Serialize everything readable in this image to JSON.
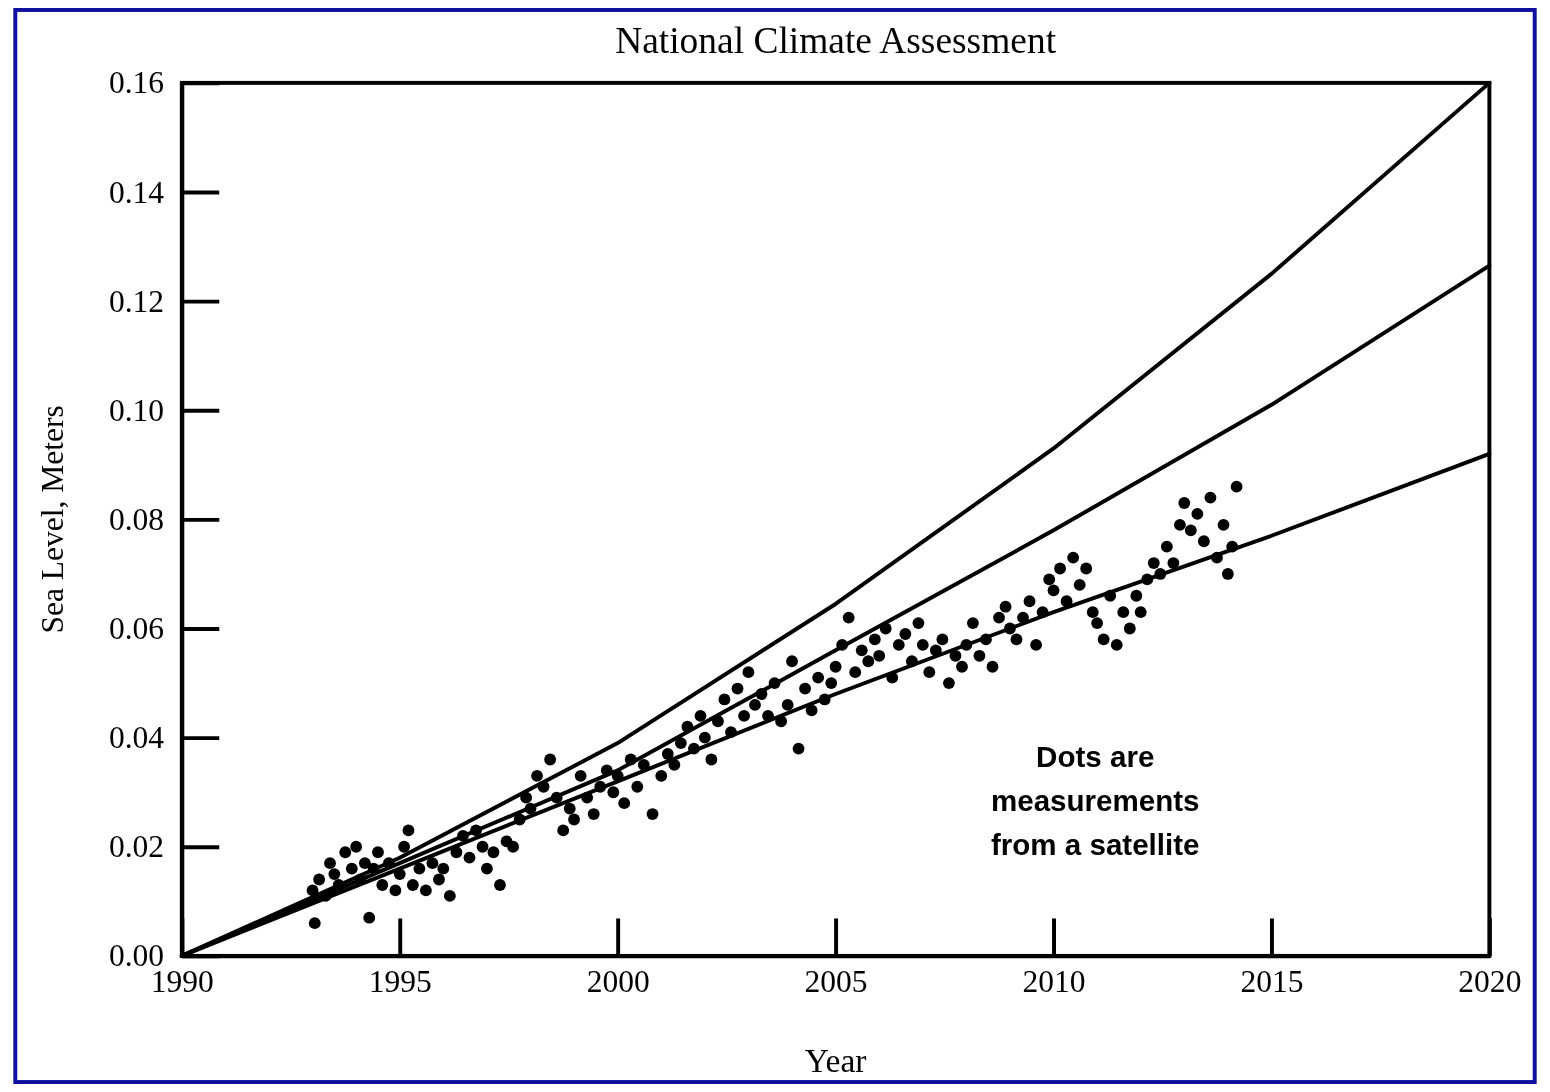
{
  "chart_data": {
    "type": "line",
    "title": "National Climate Assessment",
    "xlabel": "Year",
    "ylabel": "Sea Level, Meters",
    "xlim": [
      1990,
      2020
    ],
    "xticks": [
      1990,
      1995,
      2000,
      2005,
      2010,
      2015,
      2020
    ],
    "ylim": [
      0,
      0.16
    ],
    "yticks": [
      {
        "value": 0,
        "label": "0.00"
      },
      {
        "value": 0.02,
        "label": "0.02"
      },
      {
        "value": 0.04,
        "label": "0.04"
      },
      {
        "value": 0.06,
        "label": "0.06"
      },
      {
        "value": 0.08,
        "label": "0.08"
      },
      {
        "value": 0.1,
        "label": "0.10"
      },
      {
        "value": 0.12,
        "label": "0.12"
      },
      {
        "value": 0.14,
        "label": "0.14"
      },
      {
        "value": 0.16,
        "label": "0.16"
      }
    ],
    "annotations": [
      "Dots are measurements from a satellite"
    ],
    "series": [
      {
        "color": "#000000",
        "x": [
          1990,
          1995,
          2000,
          2005,
          2010,
          2015,
          2020
        ],
        "values": [
          0,
          0.018,
          0.039,
          0.0645,
          0.093,
          0.125,
          0.16
        ]
      },
      {
        "color": "#000000",
        "x": [
          1990,
          1995,
          2000,
          2005,
          2010,
          2015,
          2020
        ],
        "values": [
          0,
          0.017,
          0.034,
          0.056,
          0.078,
          0.101,
          0.1265
        ]
      },
      {
        "color": "#000000",
        "x": [
          1990,
          1995,
          2000,
          2005,
          2010,
          2015,
          2020
        ],
        "values": [
          0,
          0.016,
          0.032,
          0.048,
          0.063,
          0.077,
          0.092
        ]
      },
      {
        "type": "scatter",
        "color": "#000000",
        "marker": "circle",
        "x": [
          1993,
          1993.05,
          1993.15,
          1993.3,
          1993.4,
          1993.5,
          1993.6,
          1993.75,
          1993.9,
          1994,
          1994.1,
          1994.2,
          1994.3,
          1994.4,
          1994.5,
          1994.6,
          1994.75,
          1994.9,
          1995,
          1995.1,
          1995.2,
          1995.3,
          1995.45,
          1995.6,
          1995.75,
          1995.9,
          1996,
          1996.15,
          1996.3,
          1996.45,
          1996.6,
          1996.75,
          1996.9,
          1997,
          1997.15,
          1997.3,
          1997.45,
          1997.6,
          1997.75,
          1997.9,
          1998,
          1998.15,
          1998.3,
          1998.45,
          1998.6,
          1998.75,
          1998.9,
          1999,
          1999.15,
          1999.3,
          1999.45,
          1999.6,
          1999.75,
          1999.9,
          2000,
          2000.15,
          2000.3,
          2000.45,
          2000.6,
          2000.8,
          2001,
          2001.15,
          2001.3,
          2001.45,
          2001.6,
          2001.75,
          2001.9,
          2002,
          2002.15,
          2002.3,
          2002.45,
          2002.6,
          2002.75,
          2002.9,
          2003,
          2003.15,
          2003.3,
          2003.45,
          2003.6,
          2003.75,
          2003.9,
          2004,
          2004.15,
          2004.3,
          2004.45,
          2004.6,
          2004.75,
          2004.9,
          2005,
          2005.15,
          2005.3,
          2005.45,
          2005.6,
          2005.75,
          2005.9,
          2006,
          2006.15,
          2006.3,
          2006.45,
          2006.6,
          2006.75,
          2006.9,
          2007,
          2007.15,
          2007.3,
          2007.45,
          2007.6,
          2007.75,
          2007.9,
          2008,
          2008.15,
          2008.3,
          2008.45,
          2008.6,
          2008.75,
          2008.9,
          2009,
          2009.15,
          2009.3,
          2009.45,
          2009.6,
          2009.75,
          2009.9,
          2010,
          2010.15,
          2010.3,
          2010.45,
          2010.6,
          2010.75,
          2010.9,
          2011,
          2011.15,
          2011.3,
          2011.45,
          2011.6,
          2011.75,
          2011.9,
          2012,
          2012.15,
          2012.3,
          2012.45,
          2012.6,
          2012.75,
          2012.9,
          2013,
          2013.15,
          2013.3,
          2013.45,
          2013.6,
          2013.75,
          2013.9,
          2014,
          2014.1,
          2014.2
        ],
        "values": [
          0.012,
          0.006,
          0.014,
          0.011,
          0.017,
          0.015,
          0.013,
          0.019,
          0.016,
          0.02,
          0.014,
          0.017,
          0.007,
          0.016,
          0.019,
          0.013,
          0.017,
          0.012,
          0.015,
          0.02,
          0.023,
          0.013,
          0.016,
          0.012,
          0.017,
          0.014,
          0.016,
          0.011,
          0.019,
          0.022,
          0.018,
          0.023,
          0.02,
          0.016,
          0.019,
          0.013,
          0.021,
          0.02,
          0.025,
          0.029,
          0.027,
          0.033,
          0.031,
          0.036,
          0.029,
          0.023,
          0.027,
          0.025,
          0.033,
          0.029,
          0.026,
          0.031,
          0.034,
          0.03,
          0.033,
          0.028,
          0.036,
          0.031,
          0.035,
          0.026,
          0.033,
          0.037,
          0.035,
          0.039,
          0.042,
          0.038,
          0.044,
          0.04,
          0.036,
          0.043,
          0.047,
          0.041,
          0.049,
          0.044,
          0.052,
          0.046,
          0.048,
          0.044,
          0.05,
          0.043,
          0.046,
          0.054,
          0.038,
          0.049,
          0.045,
          0.051,
          0.047,
          0.05,
          0.053,
          0.057,
          0.062,
          0.052,
          0.056,
          0.054,
          0.058,
          0.055,
          0.06,
          0.051,
          0.057,
          0.059,
          0.054,
          0.061,
          0.057,
          0.052,
          0.056,
          0.058,
          0.05,
          0.055,
          0.053,
          0.057,
          0.061,
          0.055,
          0.058,
          0.053,
          0.062,
          0.064,
          0.06,
          0.058,
          0.062,
          0.065,
          0.057,
          0.063,
          0.069,
          0.067,
          0.071,
          0.065,
          0.073,
          0.068,
          0.071,
          0.063,
          0.061,
          0.058,
          0.066,
          0.057,
          0.063,
          0.06,
          0.066,
          0.063,
          0.069,
          0.072,
          0.07,
          0.075,
          0.072,
          0.079,
          0.083,
          0.078,
          0.081,
          0.076,
          0.084,
          0.073,
          0.079,
          0.07,
          0.075,
          0.086
        ]
      }
    ]
  }
}
